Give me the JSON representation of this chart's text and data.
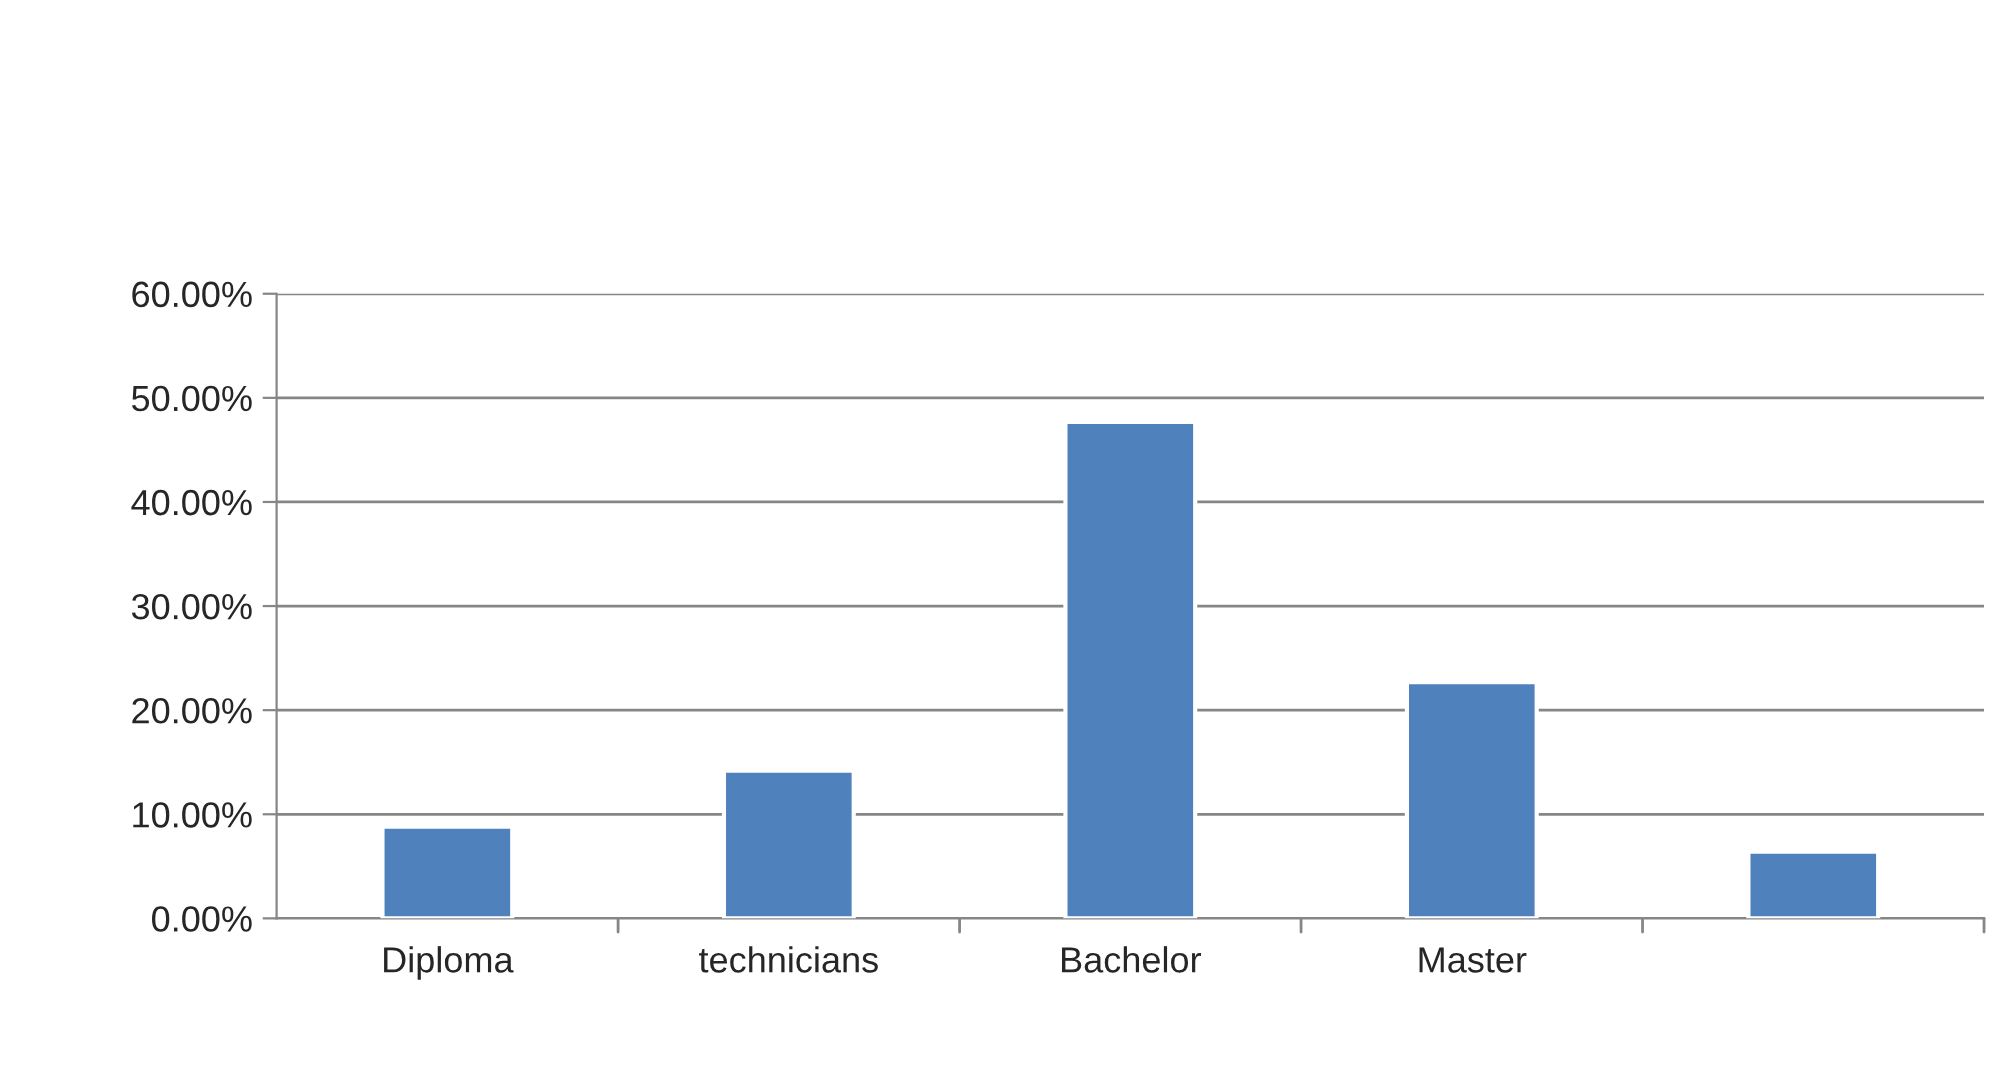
{
  "chart_data": {
    "type": "bar",
    "categories": [
      "Diploma",
      "technicians",
      "Bachelor",
      "Master",
      null
    ],
    "values": [
      8.8,
      14.2,
      47.7,
      22.7,
      6.4
    ],
    "color": "#4f81bd",
    "ylim": [
      0,
      60
    ],
    "yticks": [
      {
        "value": 0,
        "label": "0.00%"
      },
      {
        "value": 10,
        "label": "10.00%"
      },
      {
        "value": 20,
        "label": "20.00%"
      },
      {
        "value": 30,
        "label": "30.00%"
      },
      {
        "value": 40,
        "label": "40.00%"
      },
      {
        "value": 50,
        "label": "50.00%"
      },
      {
        "value": 60,
        "label": "60.00%"
      }
    ],
    "grid": "y",
    "legend": false
  }
}
